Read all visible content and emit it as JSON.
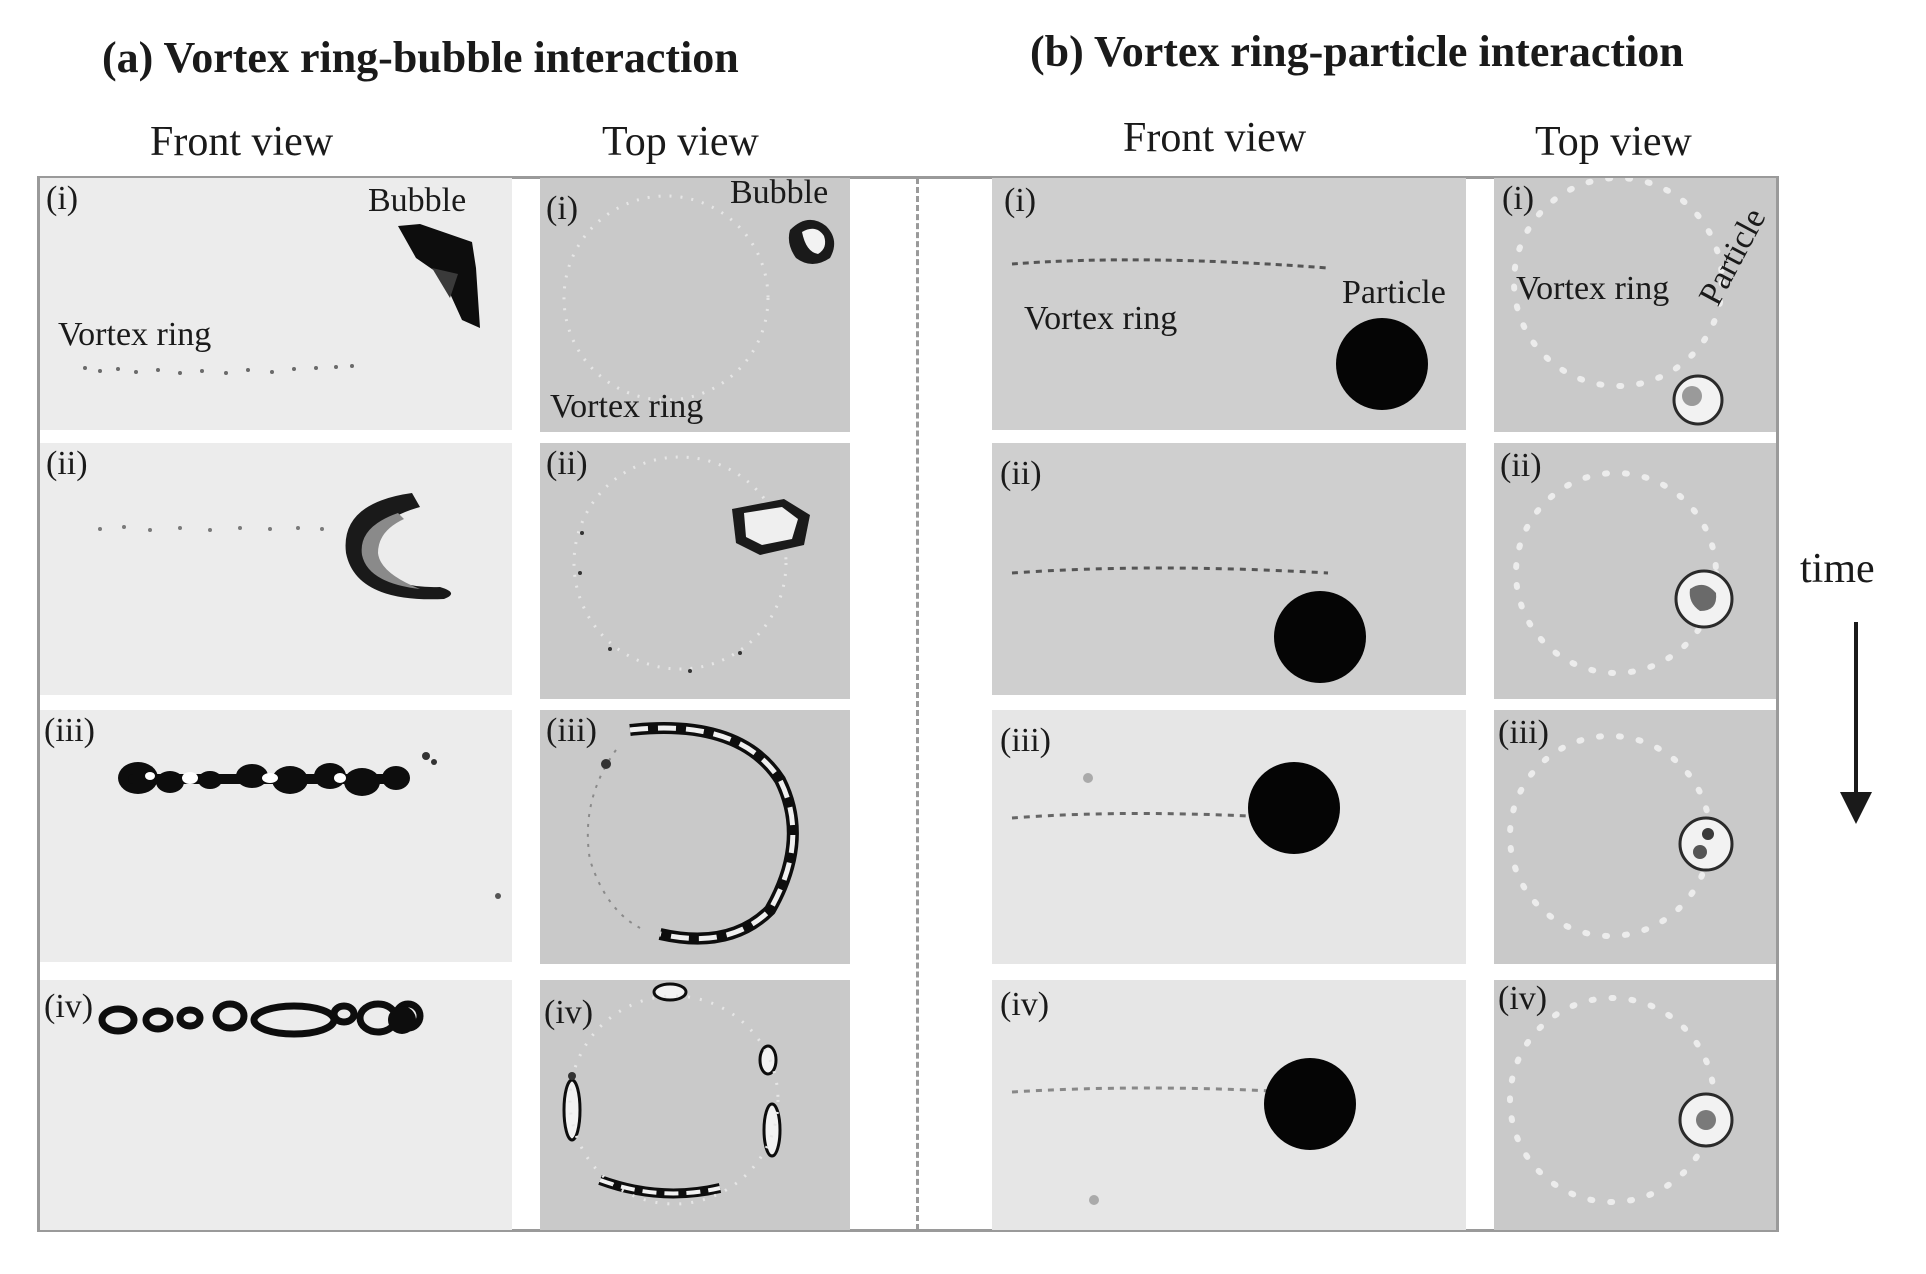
{
  "titles": {
    "a": "(a) Vortex ring-bubble interaction",
    "b": "(b) Vortex ring-particle interaction"
  },
  "views": {
    "front": "Front view",
    "top": "Top view"
  },
  "stage_labels": [
    "(i)",
    "(ii)",
    "(iii)",
    "(iv)"
  ],
  "annotations": {
    "bubble": "Bubble",
    "vortex_ring": "Vortex ring",
    "particle": "Particle",
    "time": "time"
  },
  "colors": {
    "panel_bg_light": "#ececec",
    "panel_bg_gray": "#c9c9c9",
    "frame": "#9a9a9a",
    "ink": "#0d0d0d"
  }
}
